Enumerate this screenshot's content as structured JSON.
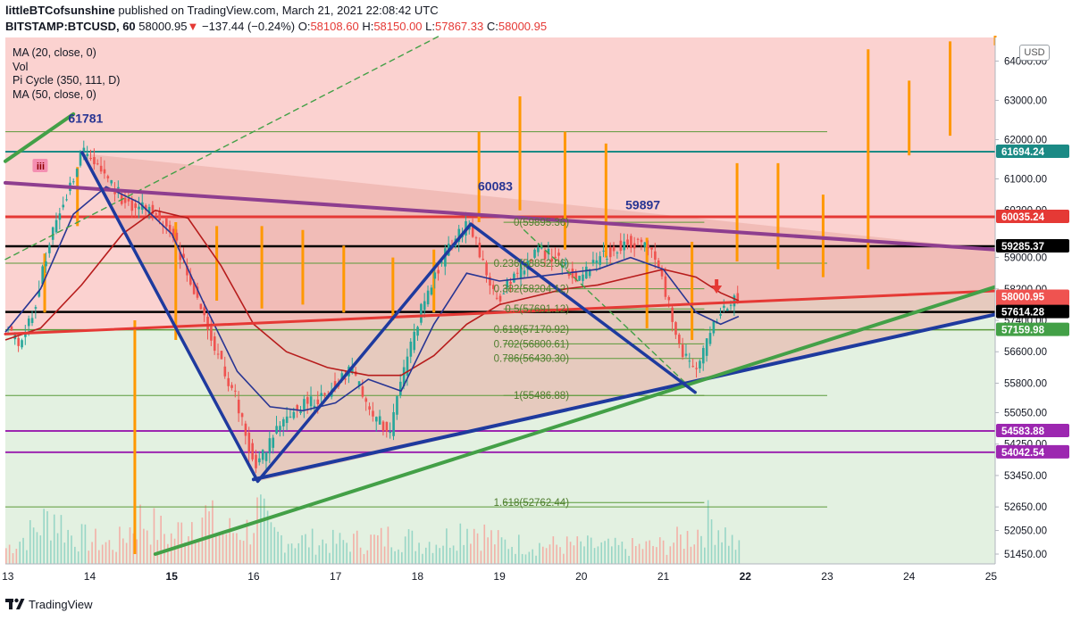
{
  "header": {
    "author": "littleBTCofsunshine",
    "published": "published on TradingView.com, March 21, 2021 22:08:42 UTC",
    "symbol": "BITSTAMP:BTCUSD, 60",
    "last": "58000.95",
    "arrow": "▼",
    "change": "−137.44 (−0.24%)",
    "o_label": "O:",
    "o_value": "58108.60",
    "h_label": "H:",
    "h_value": "58150.00",
    "l_label": "L:",
    "l_value": "57867.33",
    "c_label": "C:",
    "c_value": "58000.95"
  },
  "indicators": [
    "MA (20, close, 0)",
    "Vol",
    "Pi Cycle (350, 111, D)",
    "MA (50, close, 0)"
  ],
  "currency": "USD",
  "footer": {
    "brand": "TradingView"
  },
  "colors": {
    "bg_upper": "#fbd2d0",
    "bg_lower": "#e3f1e1",
    "triangle": "#eaa9a3",
    "candle_up": "#26a69a",
    "candle_down": "#ef5350",
    "ma20": "#283593",
    "ma50": "#b71c1c",
    "wedge_top": "#8e3e8f",
    "red_line": "#e53935",
    "green_trend": "#43a047",
    "blue_trend": "#1e3a9e",
    "fib": "#5b9a3a",
    "orange": "#ff9800",
    "purple": "#9c27b0",
    "teal": "#1b8a85",
    "black": "#000000"
  },
  "chart_data": {
    "type": "candlestick",
    "symbol": "BITSTAMP:BTCUSD",
    "timeframe": "60",
    "x_ticks": [
      "13",
      "14",
      "15",
      "16",
      "17",
      "18",
      "19",
      "20",
      "21",
      "22",
      "23",
      "24",
      "25"
    ],
    "x_bold_ticks": [
      "15",
      "22"
    ],
    "y_ticks": [
      51450,
      52050,
      52650,
      53450,
      54250,
      55050,
      55800,
      56600,
      57400,
      58200,
      59000,
      60200,
      61000,
      62000,
      63000,
      64000
    ],
    "ylim": [
      51200,
      64600
    ],
    "price_labels": [
      {
        "value": 61694.24,
        "text": "61694.24",
        "color": "#1b8a85"
      },
      {
        "value": 60035.24,
        "text": "60035.24",
        "color": "#e53935"
      },
      {
        "value": 59285.37,
        "text": "59285.37",
        "color": "#000000"
      },
      {
        "value": 58000.95,
        "text": "58000.95",
        "color": "#ef5350",
        "sub": "51:22"
      },
      {
        "value": 57614.28,
        "text": "57614.28",
        "color": "#000000"
      },
      {
        "value": 57159.98,
        "text": "57159.98",
        "color": "#43a047"
      },
      {
        "value": 54583.88,
        "text": "54583.88",
        "color": "#9c27b0"
      },
      {
        "value": 54042.54,
        "text": "54042.54",
        "color": "#9c27b0"
      }
    ],
    "annotations": [
      {
        "text": "61781",
        "day": 13.95,
        "price": 62430
      },
      {
        "text": "60083",
        "day": 18.95,
        "price": 60700
      },
      {
        "text": "59897",
        "day": 20.75,
        "price": 60230
      },
      {
        "text": "iii",
        "day": 13.4,
        "price": 61330
      }
    ],
    "fib_levels": [
      {
        "text": "0(59895.36)",
        "value": 59895.36
      },
      {
        "text": "0.236(58852.96)",
        "value": 58852.96
      },
      {
        "text": "0.382(58204.12)",
        "value": 58204.12
      },
      {
        "text": "0.5(57691.12)",
        "value": 57691.12
      },
      {
        "text": "0.618(57170.92)",
        "value": 57170.92
      },
      {
        "text": "0.702(56800.61)",
        "value": 56800.61
      },
      {
        "text": "0.786(56430.30)",
        "value": 56430.3
      },
      {
        "text": "1(55486.88)",
        "value": 55486.88
      },
      {
        "text": "1.618(52762.44)",
        "value": 52762.44
      }
    ],
    "price_path": [
      [
        12.97,
        57400
      ],
      [
        13.15,
        56850
      ],
      [
        13.35,
        57700
      ],
      [
        13.55,
        59500
      ],
      [
        13.75,
        60600
      ],
      [
        13.95,
        61750
      ],
      [
        14.2,
        61100
      ],
      [
        14.5,
        60300
      ],
      [
        14.8,
        60200
      ],
      [
        15.05,
        59500
      ],
      [
        15.3,
        58200
      ],
      [
        15.55,
        56700
      ],
      [
        15.8,
        55500
      ],
      [
        16.05,
        53600
      ],
      [
        16.3,
        54600
      ],
      [
        16.55,
        55200
      ],
      [
        16.9,
        55500
      ],
      [
        17.2,
        56200
      ],
      [
        17.5,
        54900
      ],
      [
        17.7,
        54600
      ],
      [
        17.9,
        56500
      ],
      [
        18.15,
        58200
      ],
      [
        18.4,
        59200
      ],
      [
        18.65,
        59900
      ],
      [
        18.85,
        58700
      ],
      [
        19.0,
        57900
      ],
      [
        19.25,
        58600
      ],
      [
        19.5,
        59200
      ],
      [
        19.75,
        58900
      ],
      [
        20.0,
        58500
      ],
      [
        20.3,
        59100
      ],
      [
        20.6,
        59400
      ],
      [
        20.8,
        59300
      ],
      [
        21.0,
        58700
      ],
      [
        21.15,
        57200
      ],
      [
        21.3,
        56400
      ],
      [
        21.45,
        56100
      ],
      [
        21.6,
        57200
      ],
      [
        21.8,
        57800
      ],
      [
        21.92,
        58000
      ]
    ],
    "ma20_path": [
      [
        12.97,
        57100
      ],
      [
        13.4,
        58200
      ],
      [
        13.8,
        60100
      ],
      [
        14.2,
        60800
      ],
      [
        14.6,
        60400
      ],
      [
        15.0,
        59600
      ],
      [
        15.4,
        57800
      ],
      [
        15.8,
        56100
      ],
      [
        16.2,
        55200
      ],
      [
        16.6,
        55100
      ],
      [
        17.0,
        55300
      ],
      [
        17.4,
        55900
      ],
      [
        17.8,
        55600
      ],
      [
        18.2,
        57300
      ],
      [
        18.6,
        58600
      ],
      [
        19.0,
        58400
      ],
      [
        19.4,
        58500
      ],
      [
        19.8,
        58600
      ],
      [
        20.2,
        58700
      ],
      [
        20.6,
        59000
      ],
      [
        21.0,
        58700
      ],
      [
        21.4,
        57600
      ],
      [
        21.7,
        57300
      ],
      [
        21.92,
        57500
      ]
    ],
    "ma50_path": [
      [
        12.97,
        56900
      ],
      [
        13.4,
        57200
      ],
      [
        13.9,
        58300
      ],
      [
        14.4,
        59600
      ],
      [
        14.8,
        60200
      ],
      [
        15.2,
        60000
      ],
      [
        15.6,
        58800
      ],
      [
        16.0,
        57300
      ],
      [
        16.4,
        56600
      ],
      [
        16.9,
        56200
      ],
      [
        17.4,
        56000
      ],
      [
        17.8,
        56000
      ],
      [
        18.2,
        56500
      ],
      [
        18.6,
        57300
      ],
      [
        19.0,
        57800
      ],
      [
        19.4,
        58000
      ],
      [
        19.8,
        58200
      ],
      [
        20.2,
        58300
      ],
      [
        20.6,
        58500
      ],
      [
        21.0,
        58700
      ],
      [
        21.4,
        58500
      ],
      [
        21.7,
        58100
      ],
      [
        21.92,
        57900
      ]
    ],
    "orange_bars": [
      [
        13.45,
        57600,
        59100
      ],
      [
        13.85,
        59800,
        61300
      ],
      [
        14.55,
        51450,
        57400
      ],
      [
        15.05,
        56900,
        59900
      ],
      [
        15.55,
        57900,
        59800
      ],
      [
        16.1,
        57700,
        59800
      ],
      [
        16.6,
        57800,
        59700
      ],
      [
        17.1,
        57600,
        59300
      ],
      [
        17.7,
        57400,
        59000
      ],
      [
        18.2,
        57600,
        59200
      ],
      [
        18.75,
        59900,
        62200
      ],
      [
        19.25,
        60200,
        63100
      ],
      [
        19.8,
        59200,
        62200
      ],
      [
        20.3,
        59000,
        61900
      ],
      [
        20.8,
        57200,
        59500
      ],
      [
        21.35,
        56900,
        59400
      ],
      [
        21.9,
        58900,
        61400
      ],
      [
        22.4,
        58700,
        61400
      ],
      [
        22.95,
        58500,
        60600
      ],
      [
        23.5,
        58700,
        64300
      ],
      [
        24.0,
        61600,
        63500
      ],
      [
        24.5,
        62100,
        64500
      ],
      [
        25.05,
        64400,
        64700
      ]
    ],
    "volume_peaks": [
      [
        12.97,
        0.3
      ],
      [
        13.25,
        0.55
      ],
      [
        13.45,
        0.8
      ],
      [
        13.55,
        0.95
      ],
      [
        13.75,
        0.55
      ],
      [
        14.0,
        0.45
      ],
      [
        14.3,
        0.35
      ],
      [
        14.6,
        0.85
      ],
      [
        15.0,
        0.5
      ],
      [
        15.35,
        1.0
      ],
      [
        15.6,
        0.6
      ],
      [
        15.95,
        0.65
      ],
      [
        16.05,
        1.0
      ],
      [
        16.2,
        0.55
      ],
      [
        16.5,
        0.45
      ],
      [
        17.0,
        0.4
      ],
      [
        17.5,
        0.45
      ],
      [
        17.75,
        0.55
      ],
      [
        18.0,
        0.4
      ],
      [
        18.3,
        0.45
      ],
      [
        18.6,
        0.75
      ],
      [
        19.0,
        0.4
      ],
      [
        19.5,
        0.35
      ],
      [
        20.0,
        0.35
      ],
      [
        20.5,
        0.3
      ],
      [
        21.0,
        0.35
      ],
      [
        21.35,
        0.55
      ],
      [
        21.6,
        0.85
      ],
      [
        21.9,
        0.3
      ]
    ]
  }
}
